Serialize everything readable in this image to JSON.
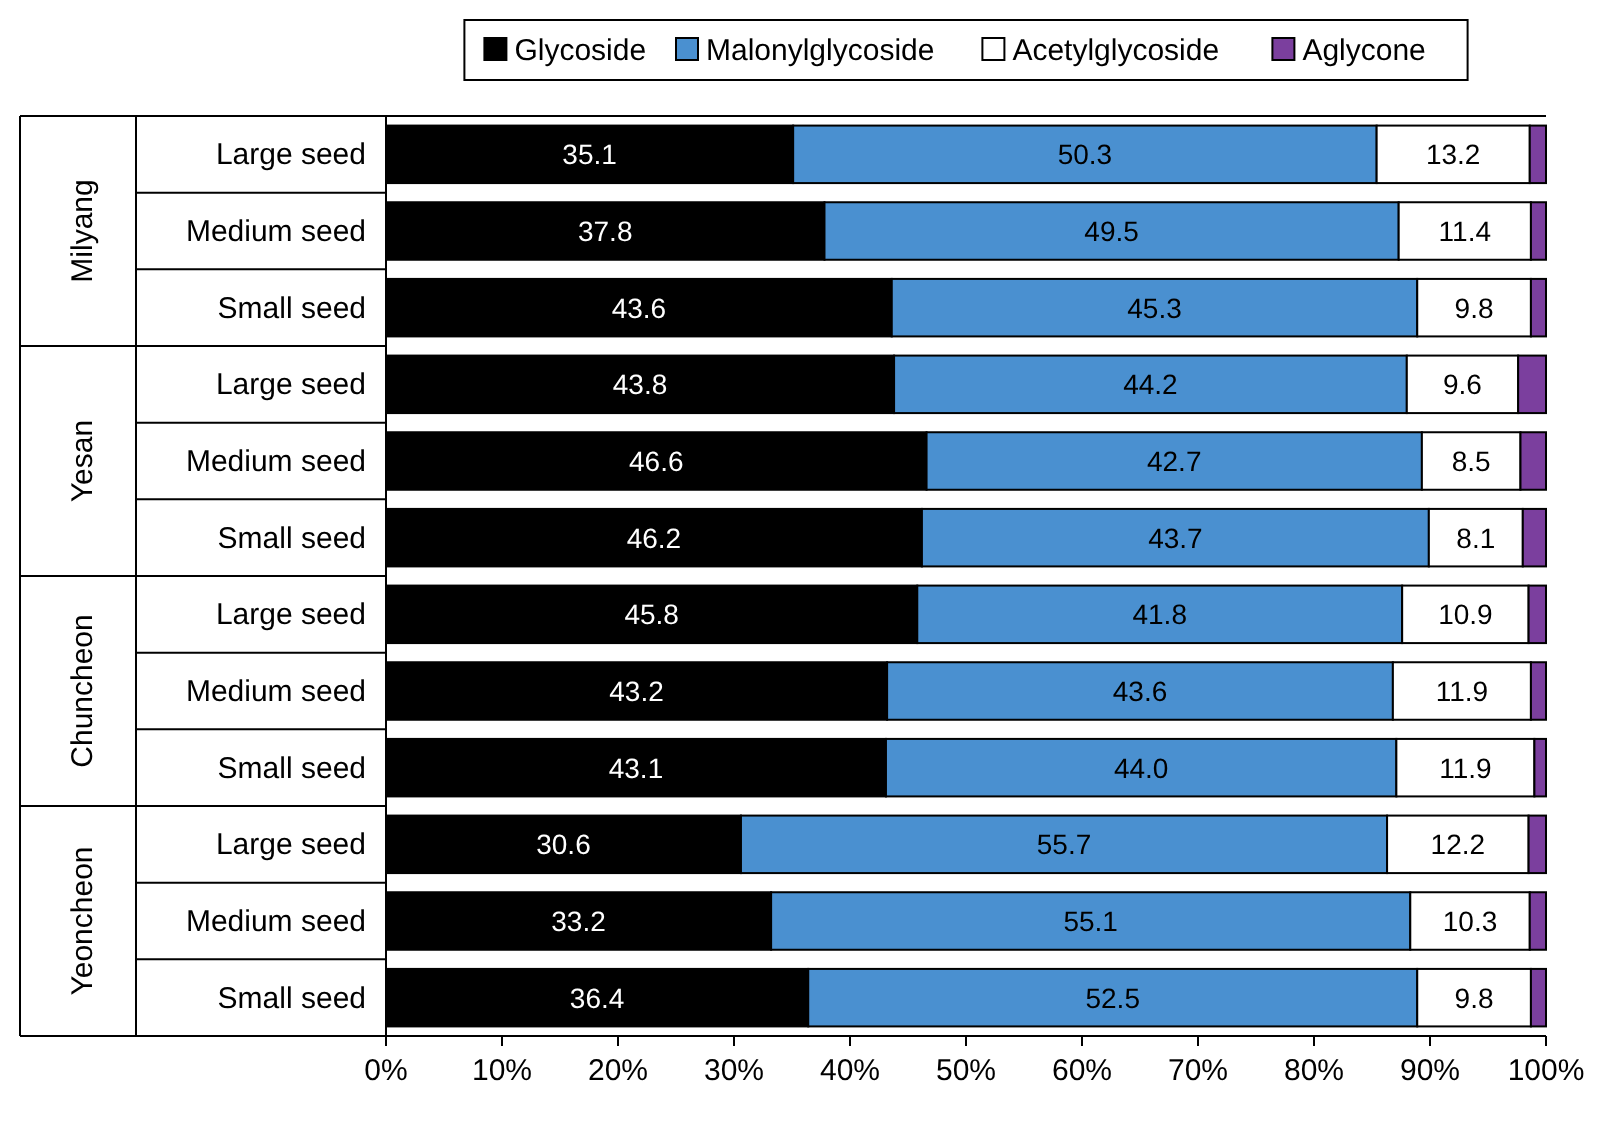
{
  "chart_data": {
    "type": "bar",
    "orientation": "horizontal",
    "stacked": true,
    "legend": "top",
    "categories": [
      "Large seed",
      "Medium seed",
      "Small seed",
      "Large seed",
      "Medium seed",
      "Small seed",
      "Large seed",
      "Medium seed",
      "Small seed",
      "Large seed",
      "Medium seed",
      "Small seed"
    ],
    "annotations": [
      "Milyang",
      "Yesan",
      "Chuncheon",
      "Yeoncheon"
    ],
    "xlim": [
      0,
      100
    ],
    "xticks": [
      {
        "value": 0,
        "label": "0%"
      },
      {
        "value": 10,
        "label": "10%"
      },
      {
        "value": 20,
        "label": "20%"
      },
      {
        "value": 30,
        "label": "30%"
      },
      {
        "value": 40,
        "label": "40%"
      },
      {
        "value": 50,
        "label": "50%"
      },
      {
        "value": 60,
        "label": "60%"
      },
      {
        "value": 70,
        "label": "70%"
      },
      {
        "value": 80,
        "label": "80%"
      },
      {
        "value": 90,
        "label": "90%"
      },
      {
        "value": 100,
        "label": "100%"
      }
    ],
    "series": [
      {
        "name": "Glycoside",
        "color": "#000000",
        "values": [
          35.1,
          37.8,
          43.6,
          43.8,
          46.6,
          46.2,
          45.8,
          43.2,
          43.1,
          30.6,
          33.2,
          36.4
        ],
        "value_labels": [
          "35.1",
          "37.8",
          "43.6",
          "43.8",
          "46.6",
          "46.2",
          "45.8",
          "43.2",
          "43.1",
          "30.6",
          "33.2",
          "36.4"
        ]
      },
      {
        "name": "Malonylglycoside",
        "color": "#4a90d0",
        "values": [
          50.3,
          49.5,
          45.3,
          44.2,
          42.7,
          43.7,
          41.8,
          43.6,
          44.0,
          55.7,
          55.1,
          52.5
        ],
        "value_labels": [
          "50.3",
          "49.5",
          "45.3",
          "44.2",
          "42.7",
          "43.7",
          "41.8",
          "43.6",
          "44.0",
          "55.7",
          "55.1",
          "52.5"
        ]
      },
      {
        "name": "Acetylglycoside",
        "color": "#ffffff",
        "values": [
          13.2,
          11.4,
          9.8,
          9.6,
          8.5,
          8.1,
          10.9,
          11.9,
          11.9,
          12.2,
          10.3,
          9.8
        ],
        "value_labels": [
          "13.2",
          "11.4",
          "9.8",
          "9.6",
          "8.5",
          "8.1",
          "10.9",
          "11.9",
          "11.9",
          "12.2",
          "10.3",
          "9.8"
        ]
      },
      {
        "name": "Aglycone",
        "color": "#7b3f9e",
        "values": [
          1.4,
          1.3,
          1.3,
          2.4,
          2.2,
          2.0,
          1.5,
          1.3,
          1.0,
          1.5,
          1.4,
          1.3
        ]
      }
    ]
  }
}
